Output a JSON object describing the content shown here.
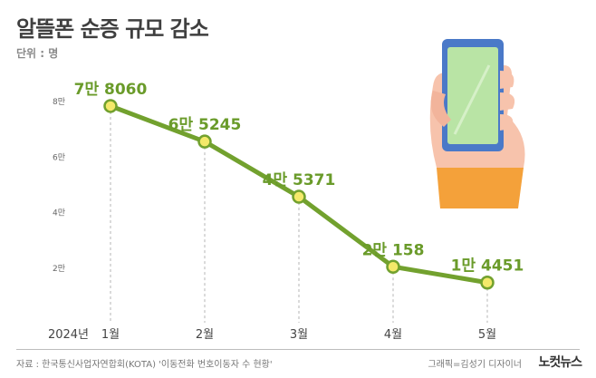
{
  "header": {
    "title": "알뜰폰 순증 규모 감소",
    "unit": "단위 : 명"
  },
  "footer": {
    "source": "자료 : 한국통신사업자연합회(KOTA) '이동전화 번호이동자 수 현황'",
    "credit": "그래픽=김성기 디자이너",
    "logo": "노컷뉴스"
  },
  "colors": {
    "line": "#72a12e",
    "marker_fill": "#f4e96a",
    "marker_stroke": "#72a12e",
    "value_label": "#6a9b2a",
    "guide": "#b5b5b5"
  },
  "chart_data": {
    "type": "line",
    "year_label": "2024년",
    "categories": [
      "1월",
      "2월",
      "3월",
      "4월",
      "5월"
    ],
    "values": [
      78060,
      65245,
      45371,
      20158,
      14451
    ],
    "value_labels": [
      "7만 8060",
      "6만 5245",
      "4만 5371",
      "2만 158",
      "1만 4451"
    ],
    "y_ticks": [
      {
        "value": 80000,
        "label": "8만"
      },
      {
        "value": 60000,
        "label": "6만"
      },
      {
        "value": 40000,
        "label": "4만"
      },
      {
        "value": 20000,
        "label": "2만"
      }
    ],
    "ylim": [
      0,
      90000
    ],
    "grid": false,
    "legend": "none"
  }
}
